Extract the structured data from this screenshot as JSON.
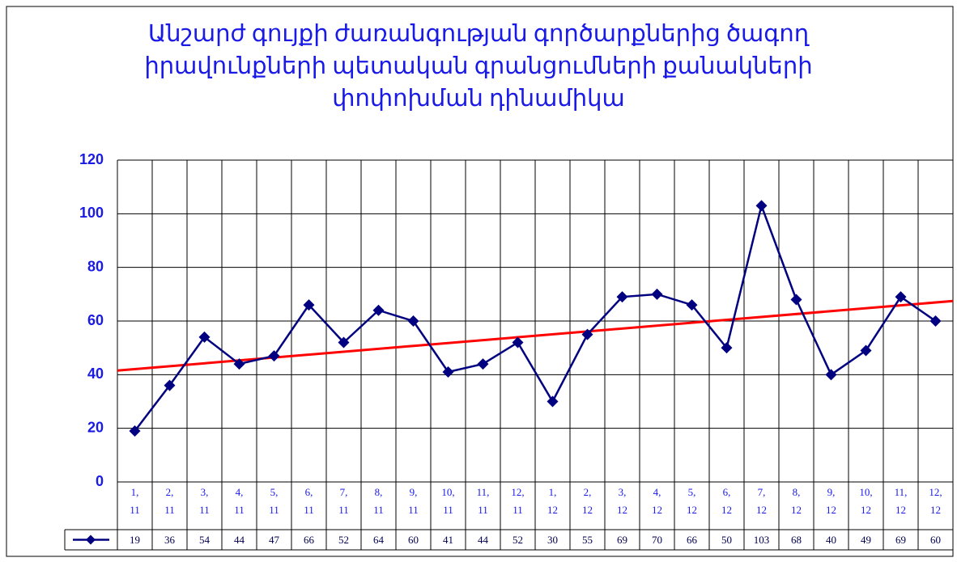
{
  "chart_data": {
    "type": "line",
    "title": "Անշարժ գույքի ժառանգության գործարքներից ծագող\nիրավունքների պետական գրանցումների քանակների\nփոփոխման դինամիկա",
    "categories": [
      "1,\n11",
      "2,\n11",
      "3,\n11",
      "4,\n11",
      "5,\n11",
      "6,\n11",
      "7,\n11",
      "8,\n11",
      "9,\n11",
      "10,\n11",
      "11,\n11",
      "12,\n11",
      "1,\n12",
      "2,\n12",
      "3,\n12",
      "4,\n12",
      "5,\n12",
      "6,\n12",
      "7,\n12",
      "8,\n12",
      "9,\n12",
      "10,\n12",
      "11,\n12",
      "12,\n12"
    ],
    "series": [
      {
        "color": "#000080",
        "values": [
          19,
          36,
          54,
          44,
          47,
          66,
          52,
          64,
          60,
          41,
          44,
          52,
          30,
          55,
          69,
          70,
          66,
          50,
          103,
          68,
          40,
          49,
          69,
          60
        ]
      }
    ],
    "trendline": "linear",
    "trendline_color": "#ff0000",
    "ylim": [
      0,
      120
    ],
    "yticks": [
      0,
      20,
      40,
      60,
      80,
      100,
      120
    ],
    "grid": true,
    "data_table": true
  }
}
